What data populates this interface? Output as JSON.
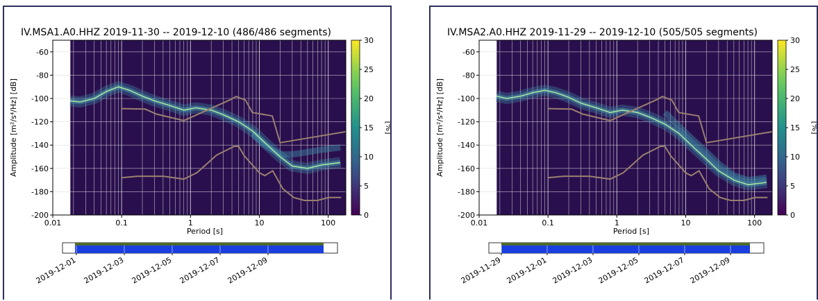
{
  "chart_data": [
    {
      "type": "heatmap",
      "title": "IV.MSA1.A0.HHZ   2019-11-30 -- 2019-12-10  (486/486 segments)",
      "xlabel": "Period [s]",
      "ylabel": "Amplitude [m²/s⁴/Hz] [dB]",
      "colorbar_label": "[%]",
      "x_scale": "log",
      "xlim": [
        0.01,
        180
      ],
      "ylim": [
        -200,
        -50
      ],
      "x_ticks": [
        "0.01",
        "0.1",
        "1",
        "10",
        "100"
      ],
      "y_ticks": [
        "-60",
        "-80",
        "-100",
        "-120",
        "-140",
        "-160",
        "-180",
        "-200"
      ],
      "colorbar_range": [
        0,
        30
      ],
      "colorbar_ticks": [
        "0",
        "5",
        "10",
        "15",
        "20",
        "25",
        "30"
      ],
      "grid": true,
      "data_start_period": 0.018,
      "psd_mode": {
        "x": [
          0.018,
          0.025,
          0.04,
          0.06,
          0.09,
          0.13,
          0.2,
          0.3,
          0.5,
          0.8,
          1.2,
          2,
          3,
          5,
          8,
          12,
          20,
          30,
          50,
          80,
          150
        ],
        "y": [
          -102,
          -103,
          -100,
          -94,
          -90,
          -93,
          -98,
          -102,
          -106,
          -110,
          -108,
          -110,
          -114,
          -120,
          -128,
          -138,
          -150,
          -158,
          -160,
          -157,
          -155
        ]
      },
      "psd_secondary": {
        "x": [
          8,
          12,
          20,
          30,
          50,
          80,
          150
        ],
        "y": [
          -130,
          -140,
          -148,
          -148,
          -146,
          -144,
          -142
        ]
      },
      "nhnm": {
        "x": [
          0.1,
          0.22,
          0.32,
          0.8,
          3.8,
          4.6,
          6.3,
          7.9,
          15.4,
          20,
          354.8
        ],
        "y": [
          -108.7,
          -109.1,
          -113.4,
          -119,
          -101,
          -98.3,
          -101.4,
          -112,
          -115,
          -138,
          -128.5
        ]
      },
      "nlnm": {
        "x": [
          0.1,
          0.17,
          0.4,
          0.8,
          1.24,
          2.4,
          4.3,
          5,
          6,
          10,
          12,
          15.6,
          21.9,
          31.6,
          45,
          70,
          101,
          154
        ],
        "y": [
          -168,
          -166.7,
          -166.7,
          -169.2,
          -163.7,
          -148.6,
          -141.1,
          -141.1,
          -149,
          -163.8,
          -166.2,
          -162.1,
          -177.5,
          -185,
          -187.5,
          -187.5,
          -185,
          -185
        ]
      },
      "timeline": {
        "tick_labels": [
          "2019-12-01",
          "2019-12-03",
          "2019-12-05",
          "2019-12-07",
          "2019-12-09"
        ]
      }
    },
    {
      "type": "heatmap",
      "title": "IV.MSA2.A0.HHZ   2019-11-29 -- 2019-12-10  (505/505 segments)",
      "xlabel": "Period [s]",
      "ylabel": "Amplitude [m²/s⁴/Hz] [dB]",
      "colorbar_label": "[%]",
      "x_scale": "log",
      "xlim": [
        0.01,
        180
      ],
      "ylim": [
        -200,
        -50
      ],
      "x_ticks": [
        "0.01",
        "0.1",
        "1",
        "10",
        "100"
      ],
      "y_ticks": [
        "-60",
        "-80",
        "-100",
        "-120",
        "-140",
        "-160",
        "-180",
        "-200"
      ],
      "colorbar_range": [
        0,
        30
      ],
      "colorbar_ticks": [
        "0",
        "5",
        "10",
        "15",
        "20",
        "25",
        "30"
      ],
      "grid": true,
      "data_start_period": 0.018,
      "psd_mode": {
        "x": [
          0.018,
          0.025,
          0.04,
          0.06,
          0.09,
          0.13,
          0.2,
          0.3,
          0.5,
          0.8,
          1.2,
          2,
          3,
          5,
          8,
          12,
          20,
          30,
          50,
          80,
          150
        ],
        "y": [
          -98,
          -100,
          -98,
          -95,
          -93,
          -95,
          -99,
          -104,
          -108,
          -112,
          -110,
          -112,
          -116,
          -122,
          -130,
          -140,
          -152,
          -162,
          -170,
          -174,
          -172
        ]
      },
      "psd_secondary": {
        "x": [
          5,
          8,
          12,
          20,
          30,
          50,
          80,
          150
        ],
        "y": [
          -112,
          -124,
          -134,
          -146,
          -156,
          -166,
          -170,
          -168
        ]
      },
      "nhnm": {
        "x": [
          0.1,
          0.22,
          0.32,
          0.8,
          3.8,
          4.6,
          6.3,
          7.9,
          15.4,
          20,
          354.8
        ],
        "y": [
          -108.7,
          -109.1,
          -113.4,
          -119,
          -101,
          -98.3,
          -101.4,
          -112,
          -115,
          -138,
          -128.5
        ]
      },
      "nlnm": {
        "x": [
          0.1,
          0.17,
          0.4,
          0.8,
          1.24,
          2.4,
          4.3,
          5,
          6,
          10,
          12,
          15.6,
          21.9,
          31.6,
          45,
          70,
          101,
          154
        ],
        "y": [
          -168,
          -166.7,
          -166.7,
          -169.2,
          -163.7,
          -148.6,
          -141.1,
          -141.1,
          -149,
          -163.8,
          -166.2,
          -162.1,
          -177.5,
          -185,
          -187.5,
          -187.5,
          -185,
          -185
        ]
      },
      "timeline": {
        "tick_labels": [
          "2019-11-29",
          "2019-12-01",
          "2019-12-03",
          "2019-12-05",
          "2019-12-07",
          "2019-12-09"
        ]
      }
    }
  ],
  "colors": {
    "background": "#2a0f4e",
    "grid": "#d8d8d8",
    "noise_model": "#9a8070",
    "psd_core": "#b8f0a0",
    "psd_glow": "#3f8fa8",
    "coverage": "#1a3fe0",
    "timeline_top": "#4e6b2c",
    "panel_border": "#2c2f5a"
  }
}
